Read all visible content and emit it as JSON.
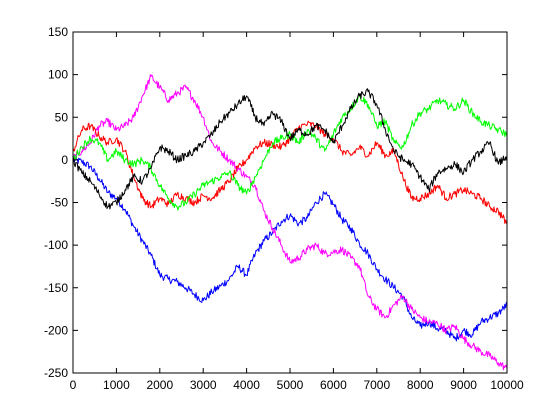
{
  "chart_data": {
    "type": "line",
    "title": "",
    "xlabel": "",
    "ylabel": "",
    "xlim": [
      0,
      10000
    ],
    "ylim": [
      -250,
      150
    ],
    "x_ticks": [
      0,
      1000,
      2000,
      3000,
      4000,
      5000,
      6000,
      7000,
      8000,
      9000,
      10000
    ],
    "y_ticks": [
      -250,
      -200,
      -150,
      -100,
      -50,
      0,
      50,
      100,
      150
    ],
    "grid": false,
    "legend": "none",
    "series": [
      {
        "color": "#0000ff",
        "x": [
          0,
          200,
          400,
          600,
          800,
          1000,
          1200,
          1400,
          1600,
          1800,
          2000,
          2200,
          2400,
          2600,
          2800,
          3000,
          3200,
          3400,
          3600,
          3800,
          4000,
          4200,
          4400,
          4600,
          4800,
          5000,
          5200,
          5400,
          5600,
          5800,
          6000,
          6200,
          6400,
          6600,
          6800,
          7000,
          7200,
          7400,
          7600,
          7800,
          8000,
          8200,
          8400,
          8600,
          8800,
          9000,
          9200,
          9400,
          9600,
          9800,
          10000
        ],
        "y": [
          0,
          -2,
          -8,
          -22,
          -38,
          -45,
          -58,
          -78,
          -95,
          -112,
          -135,
          -140,
          -143,
          -150,
          -158,
          -165,
          -155,
          -148,
          -140,
          -125,
          -135,
          -110,
          -95,
          -85,
          -72,
          -65,
          -75,
          -68,
          -50,
          -40,
          -52,
          -70,
          -80,
          -98,
          -110,
          -128,
          -140,
          -150,
          -160,
          -185,
          -195,
          -190,
          -198,
          -200,
          -210,
          -200,
          -205,
          -190,
          -185,
          -180,
          -170
        ]
      },
      {
        "color": "#ff00ff",
        "x": [
          0,
          200,
          400,
          600,
          800,
          1000,
          1200,
          1400,
          1600,
          1800,
          2000,
          2200,
          2400,
          2600,
          2800,
          3000,
          3200,
          3400,
          3600,
          3800,
          4000,
          4200,
          4400,
          4600,
          4800,
          5000,
          5200,
          5400,
          5600,
          5800,
          6000,
          6200,
          6400,
          6600,
          6800,
          7000,
          7200,
          7400,
          7600,
          7800,
          8000,
          8200,
          8400,
          8600,
          8800,
          9000,
          9200,
          9400,
          9600,
          9800,
          10000
        ],
        "y": [
          2,
          10,
          20,
          40,
          45,
          35,
          40,
          50,
          75,
          98,
          85,
          70,
          78,
          85,
          70,
          50,
          20,
          10,
          0,
          -10,
          -20,
          -30,
          -60,
          -80,
          -100,
          -120,
          -115,
          -105,
          -100,
          -110,
          -108,
          -105,
          -115,
          -125,
          -160,
          -175,
          -185,
          -170,
          -160,
          -175,
          -185,
          -190,
          -192,
          -200,
          -195,
          -210,
          -218,
          -225,
          -230,
          -238,
          -245
        ]
      },
      {
        "color": "#ff0000",
        "x": [
          0,
          200,
          400,
          600,
          800,
          1000,
          1200,
          1400,
          1600,
          1800,
          2000,
          2200,
          2400,
          2600,
          2800,
          3000,
          3200,
          3400,
          3600,
          3800,
          4000,
          4200,
          4400,
          4600,
          4800,
          5000,
          5200,
          5400,
          5600,
          5800,
          6000,
          6200,
          6400,
          6600,
          6800,
          7000,
          7200,
          7400,
          7600,
          7800,
          8000,
          8200,
          8400,
          8600,
          8800,
          9000,
          9200,
          9400,
          9600,
          9800,
          10000
        ],
        "y": [
          10,
          35,
          40,
          28,
          20,
          25,
          10,
          -20,
          -45,
          -55,
          -45,
          -52,
          -40,
          -45,
          -50,
          -42,
          -45,
          -35,
          -25,
          -10,
          0,
          15,
          20,
          18,
          15,
          25,
          38,
          42,
          40,
          30,
          25,
          10,
          5,
          15,
          5,
          20,
          5,
          10,
          -20,
          -45,
          -45,
          -40,
          -30,
          -45,
          -40,
          -35,
          -40,
          -45,
          -55,
          -60,
          -75
        ]
      },
      {
        "color": "#00ff00",
        "x": [
          0,
          200,
          400,
          600,
          800,
          1000,
          1200,
          1400,
          1600,
          1800,
          2000,
          2200,
          2400,
          2600,
          2800,
          3000,
          3200,
          3400,
          3600,
          3800,
          4000,
          4200,
          4400,
          4600,
          4800,
          5000,
          5200,
          5400,
          5600,
          5800,
          6000,
          6200,
          6400,
          6600,
          6800,
          7000,
          7200,
          7400,
          7600,
          7800,
          8000,
          8200,
          8400,
          8600,
          8800,
          9000,
          9200,
          9400,
          9600,
          9800,
          10000
        ],
        "y": [
          0,
          15,
          25,
          20,
          0,
          10,
          0,
          -5,
          0,
          -10,
          -30,
          -45,
          -55,
          -50,
          -40,
          -30,
          -25,
          -20,
          -15,
          -30,
          -40,
          -20,
          0,
          20,
          25,
          30,
          20,
          35,
          25,
          10,
          30,
          50,
          60,
          75,
          65,
          40,
          45,
          20,
          15,
          40,
          55,
          60,
          70,
          65,
          60,
          70,
          55,
          45,
          40,
          35,
          30
        ]
      },
      {
        "color": "#000000",
        "x": [
          0,
          200,
          400,
          600,
          800,
          1000,
          1200,
          1400,
          1600,
          1800,
          2000,
          2200,
          2400,
          2600,
          2800,
          3000,
          3200,
          3400,
          3600,
          3800,
          4000,
          4200,
          4400,
          4600,
          4800,
          5000,
          5200,
          5400,
          5600,
          5800,
          6000,
          6200,
          6400,
          6600,
          6800,
          7000,
          7200,
          7400,
          7600,
          7800,
          8000,
          8200,
          8400,
          8600,
          8800,
          9000,
          9200,
          9400,
          9600,
          9800,
          10000
        ],
        "y": [
          0,
          -15,
          -25,
          -40,
          -55,
          -50,
          -35,
          -20,
          -25,
          -10,
          15,
          10,
          0,
          5,
          10,
          20,
          30,
          45,
          55,
          65,
          75,
          50,
          40,
          55,
          45,
          25,
          35,
          30,
          40,
          35,
          20,
          40,
          60,
          75,
          80,
          65,
          35,
          10,
          0,
          -5,
          -20,
          -35,
          -15,
          -10,
          -5,
          -15,
          0,
          10,
          20,
          -5,
          5
        ]
      }
    ]
  }
}
